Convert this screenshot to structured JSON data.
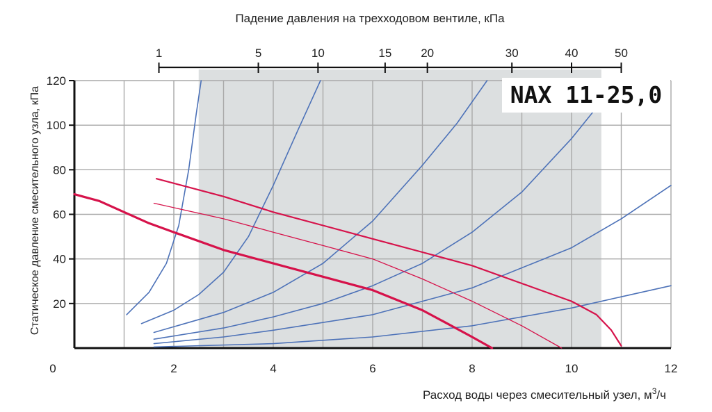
{
  "chart_data": {
    "type": "line",
    "title": "NAX 11-25,0",
    "top_axis_label": "Падение давления на трехходовом вентиле, кПа",
    "xlabel": "Расход воды через смесительный узел, м",
    "xlabel_sup": "3",
    "xlabel_tail": "/ч",
    "ylabel": "Статическое давление смесительного узла, кПа",
    "xlim": [
      0,
      12
    ],
    "ylim": [
      0,
      120
    ],
    "x_ticks": [
      "0",
      "2",
      "4",
      "6",
      "8",
      "10",
      "12"
    ],
    "x_tick_values": [
      0,
      2,
      4,
      6,
      8,
      10,
      12
    ],
    "y_ticks": [
      "20",
      "40",
      "60",
      "80",
      "100",
      "120"
    ],
    "y_tick_values": [
      20,
      40,
      60,
      80,
      100,
      120
    ],
    "top_ticks": [
      "1",
      "5",
      "10",
      "15",
      "20",
      "30",
      "40",
      "50"
    ],
    "top_tick_flow_positions": [
      1.7,
      3.7,
      4.9,
      6.25,
      7.1,
      8.8,
      10.0,
      11.0
    ],
    "shaded_region_flow": [
      2.5,
      10.6
    ],
    "grid": true,
    "colors": {
      "pump": "#d6124a",
      "valve": "#4d72b8",
      "shade": "#dcdfe0",
      "grid": "#a9a9a9"
    },
    "valve_series": [
      {
        "points": [
          [
            1.05,
            15
          ],
          [
            1.5,
            25
          ],
          [
            1.85,
            38
          ],
          [
            2.1,
            55
          ],
          [
            2.3,
            80
          ],
          [
            2.45,
            105
          ],
          [
            2.55,
            120
          ]
        ]
      },
      {
        "points": [
          [
            1.35,
            11
          ],
          [
            2.0,
            17
          ],
          [
            2.5,
            24
          ],
          [
            3.0,
            34
          ],
          [
            3.5,
            50
          ],
          [
            4.0,
            73
          ],
          [
            4.5,
            98
          ],
          [
            4.95,
            120
          ]
        ]
      },
      {
        "points": [
          [
            1.6,
            7
          ],
          [
            3.0,
            16
          ],
          [
            4.0,
            25
          ],
          [
            5.0,
            38
          ],
          [
            6.0,
            57
          ],
          [
            7.0,
            82
          ],
          [
            7.7,
            101
          ],
          [
            8.3,
            120
          ]
        ]
      },
      {
        "points": [
          [
            1.6,
            4
          ],
          [
            3.0,
            9
          ],
          [
            4.0,
            14
          ],
          [
            5.0,
            20
          ],
          [
            6.0,
            28
          ],
          [
            7.0,
            38
          ],
          [
            8.0,
            52
          ],
          [
            9.0,
            70
          ],
          [
            10.0,
            94
          ],
          [
            10.65,
            112
          ]
        ]
      },
      {
        "points": [
          [
            1.6,
            2
          ],
          [
            3.0,
            5
          ],
          [
            4.0,
            8
          ],
          [
            6.0,
            15
          ],
          [
            7.0,
            21
          ],
          [
            8.0,
            27
          ],
          [
            10.0,
            45
          ],
          [
            11.0,
            58
          ],
          [
            12.0,
            73
          ]
        ]
      },
      {
        "points": [
          [
            1.6,
            0.5
          ],
          [
            4.0,
            2
          ],
          [
            6.0,
            5
          ],
          [
            8.0,
            10
          ],
          [
            10.0,
            18
          ],
          [
            11.0,
            23
          ],
          [
            12.0,
            28
          ]
        ]
      }
    ],
    "pump_series": [
      {
        "width": 3.2,
        "points": [
          [
            0.0,
            69
          ],
          [
            0.5,
            66
          ],
          [
            1.0,
            61
          ],
          [
            1.5,
            56
          ],
          [
            2.0,
            52
          ],
          [
            3.0,
            44
          ],
          [
            4.0,
            38
          ],
          [
            5.0,
            32
          ],
          [
            6.0,
            26
          ],
          [
            7.0,
            17
          ],
          [
            7.5,
            11
          ],
          [
            8.0,
            5
          ],
          [
            8.4,
            0
          ]
        ]
      },
      {
        "width": 2.2,
        "points": [
          [
            1.65,
            76
          ],
          [
            3.0,
            68
          ],
          [
            4.0,
            61
          ],
          [
            5.0,
            55
          ],
          [
            6.0,
            49
          ],
          [
            7.0,
            43
          ],
          [
            8.0,
            37
          ],
          [
            9.0,
            29
          ],
          [
            10.0,
            21
          ],
          [
            10.5,
            15
          ],
          [
            10.8,
            8
          ],
          [
            11.0,
            1
          ]
        ]
      },
      {
        "width": 1.3,
        "points": [
          [
            1.6,
            65
          ],
          [
            3.0,
            58
          ],
          [
            4.0,
            52
          ],
          [
            5.0,
            46
          ],
          [
            6.0,
            40
          ],
          [
            7.0,
            31
          ],
          [
            8.0,
            21
          ],
          [
            9.0,
            10
          ],
          [
            9.8,
            0
          ]
        ]
      }
    ]
  }
}
